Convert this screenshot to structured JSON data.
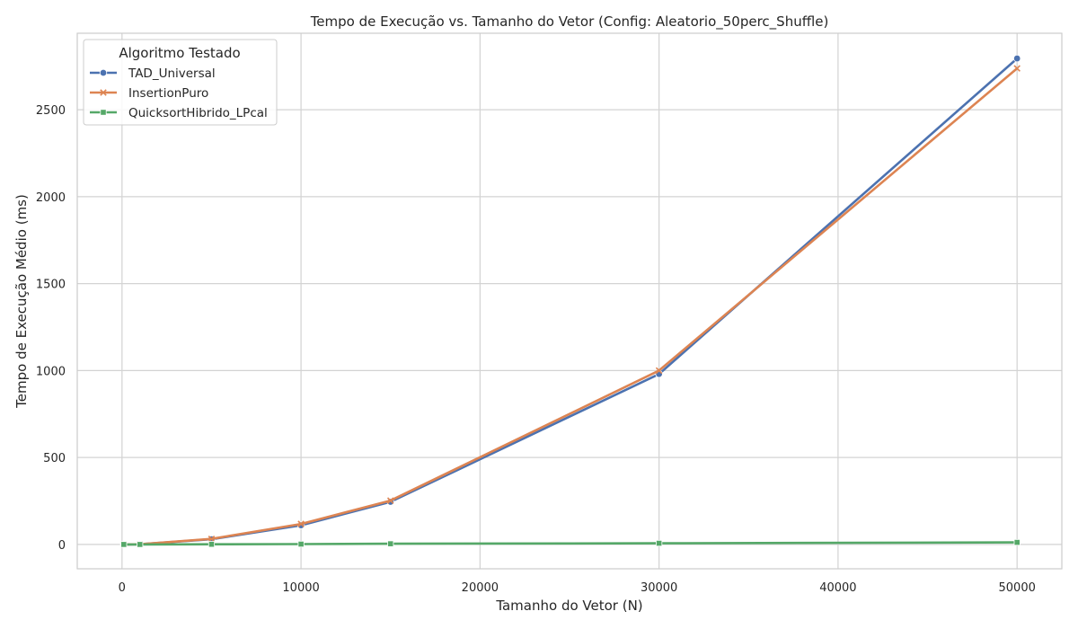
{
  "chart_data": {
    "type": "line",
    "title": "Tempo de Execução vs. Tamanho do Vetor (Config: Aleatorio_50perc_Shuffle)",
    "xlabel": "Tamanho do Vetor (N)",
    "ylabel": "Tempo de Execução Médio (ms)",
    "xlim": [
      -2500,
      52500
    ],
    "ylim": [
      -140,
      2940
    ],
    "xticks": [
      0,
      10000,
      20000,
      30000,
      40000,
      50000
    ],
    "yticks": [
      0,
      500,
      1000,
      1500,
      2000,
      2500
    ],
    "grid": true,
    "legend": {
      "title": "Algoritmo Testado",
      "placement": "top-left"
    },
    "series": [
      {
        "name": "TAD_Universal",
        "color": "#4c72b0",
        "marker": "circle",
        "x": [
          100,
          1000,
          5000,
          10000,
          15000,
          30000,
          50000
        ],
        "y": [
          0,
          1,
          30,
          110,
          245,
          980,
          2795
        ]
      },
      {
        "name": "InsertionPuro",
        "color": "#dd8452",
        "marker": "x",
        "x": [
          100,
          1000,
          5000,
          10000,
          15000,
          30000,
          50000
        ],
        "y": [
          0,
          1,
          32,
          118,
          252,
          1000,
          2738
        ]
      },
      {
        "name": "QuicksortHibrido_LPcal",
        "color": "#55a868",
        "marker": "square",
        "x": [
          100,
          1000,
          5000,
          10000,
          15000,
          30000,
          50000
        ],
        "y": [
          0,
          0,
          1,
          2,
          4,
          7,
          12
        ]
      }
    ]
  }
}
